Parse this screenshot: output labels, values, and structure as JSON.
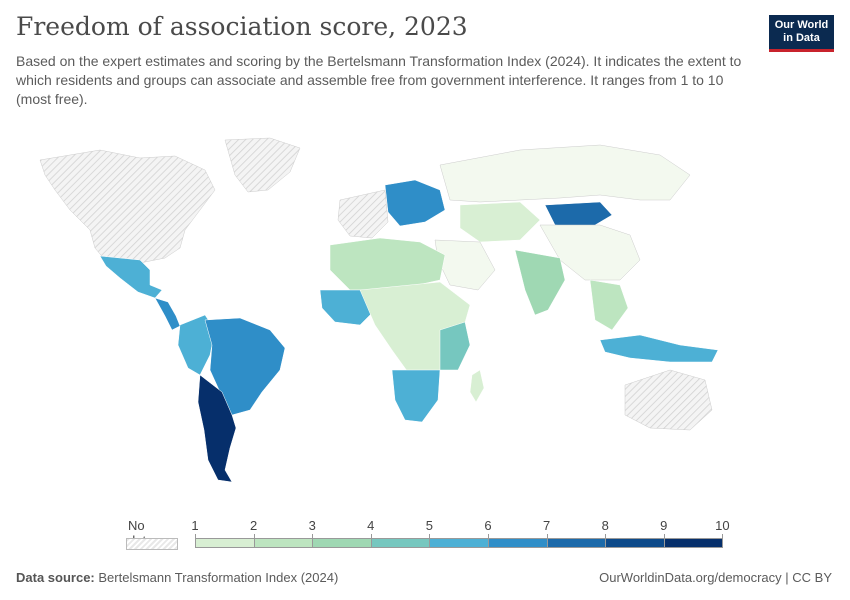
{
  "header": {
    "title": "Freedom of association score, 2023",
    "subtitle": "Based on the expert estimates and scoring by the Bertelsmann Transformation Index (2024). It indicates the extent to which residents and groups can associate and assemble free from government interference. It ranges from 1 to 10 (most free).",
    "logo_line1": "Our World",
    "logo_line2": "in Data"
  },
  "legend": {
    "no_data_label": "No data",
    "ticks": [
      "1",
      "2",
      "3",
      "4",
      "5",
      "6",
      "7",
      "8",
      "9",
      "10"
    ],
    "colors": [
      "#f3f9ef",
      "#d8efd3",
      "#bde5c0",
      "#9fd8b3",
      "#76c7bf",
      "#4db0d5",
      "#2f8ec8",
      "#1c6aaa",
      "#0d4a8a",
      "#062f6b"
    ]
  },
  "colors": {
    "no_data": "#e6e6e6",
    "low": "#edf6e8",
    "ocean": "#ffffff"
  },
  "footer": {
    "source_label": "Data source:",
    "source": "Bertelsmann Transformation Index (2024)",
    "url": "OurWorldinData.org/democracy | CC BY"
  }
}
